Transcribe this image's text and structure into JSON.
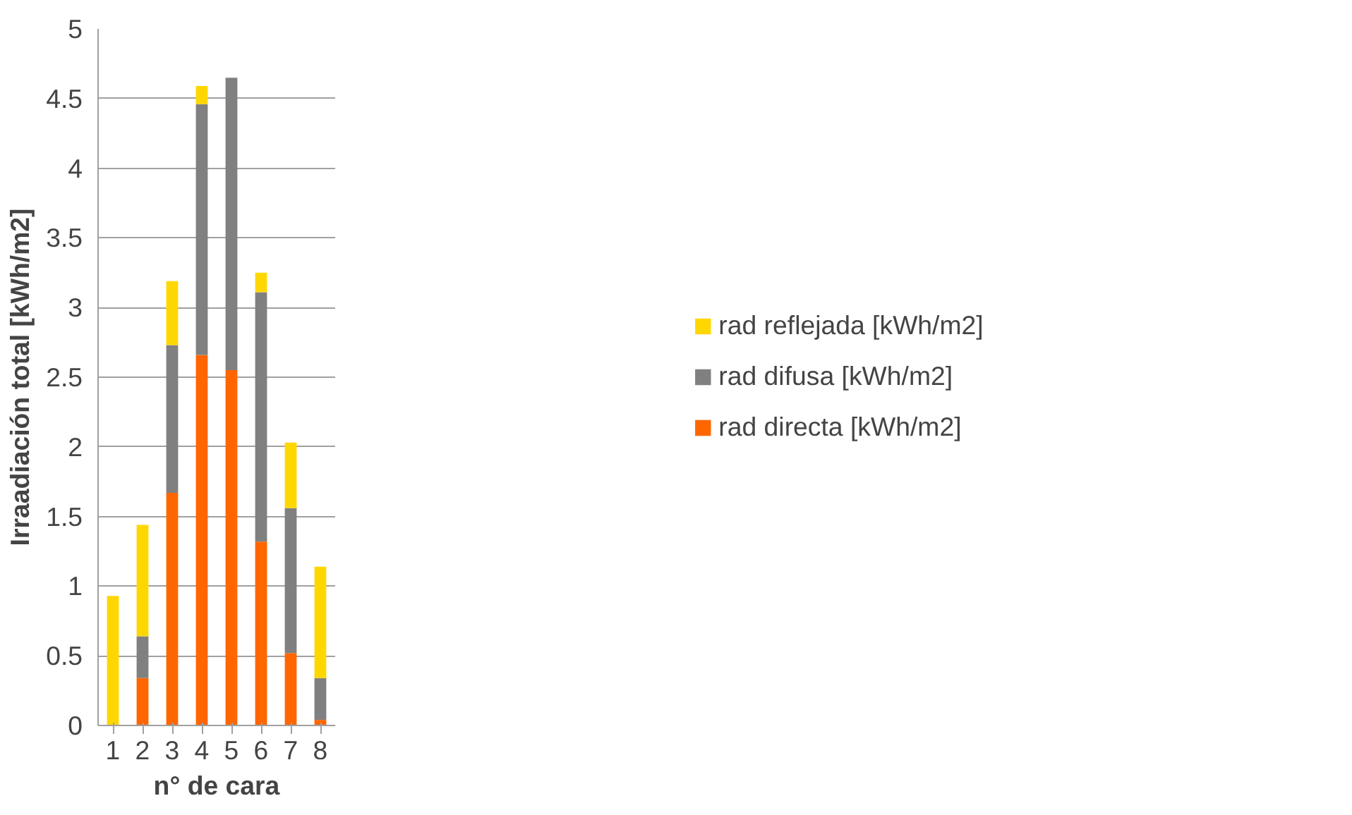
{
  "chart_data": {
    "type": "bar",
    "stacked": true,
    "xlabel": "n° de cara",
    "ylabel": "Irraadiación total [kWh/m2]",
    "categories": [
      "1",
      "2",
      "3",
      "4",
      "5",
      "6",
      "7",
      "8"
    ],
    "series": [
      {
        "name": "rad directa [kWh/m2]",
        "color": "#ff6600",
        "values": [
          0,
          0.34,
          1.67,
          2.66,
          2.55,
          1.32,
          0.52,
          0.04
        ]
      },
      {
        "name": "rad difusa [kWh/m2]",
        "color": "#808080",
        "values": [
          0,
          0.3,
          1.06,
          1.8,
          2.1,
          1.79,
          1.04,
          0.3
        ]
      },
      {
        "name": "rad reflejada [kWh/m2]",
        "color": "#ffd700",
        "values": [
          0.93,
          0.8,
          0.46,
          0.13,
          0,
          0.14,
          0.47,
          0.8
        ]
      }
    ],
    "ylim": [
      0,
      5
    ],
    "yticks": [
      0,
      0.5,
      1,
      1.5,
      2,
      2.5,
      3,
      3.5,
      4,
      4.5,
      5
    ],
    "grid": "y",
    "legend": "right"
  }
}
